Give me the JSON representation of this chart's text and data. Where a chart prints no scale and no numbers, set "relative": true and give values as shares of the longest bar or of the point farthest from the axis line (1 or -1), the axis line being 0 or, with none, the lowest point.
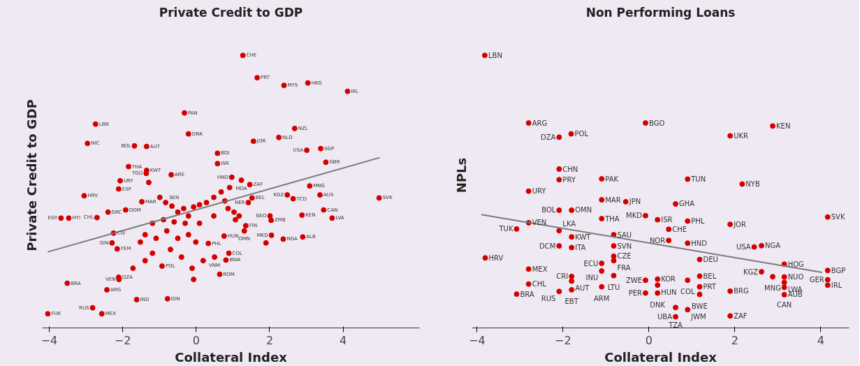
{
  "chart_data": [
    {
      "type": "scatter",
      "title": "Private Credit to GDP",
      "xlabel": "Collateral Index",
      "ylabel": "Private Credit to GDP",
      "relative": true,
      "xlim": [
        -4.19,
        6.08
      ],
      "xticks": [
        -4,
        -2,
        0,
        2,
        4
      ],
      "grid": false,
      "series": [
        {
          "marker": "circle",
          "color": "#d40000",
          "x": [
            1.27,
            1.66,
            2.39,
            3.04,
            4.12,
            -0.32,
            -2.74,
            2.68,
            -0.21,
            -2.96,
            1.56,
            2.25,
            -1.35,
            -1.68,
            3.01,
            3.39,
            0.58,
            3.53,
            -1.84,
            -1.35,
            -1.36,
            -0.68,
            -2.07,
            -2.11,
            -3.05,
            -3.68,
            -3.47,
            -2.7,
            -2.4,
            -1.92,
            -1.48,
            -0.83,
            -2.25,
            -2.29,
            -2.15,
            -2.11,
            -2.1,
            -3.51,
            -2.43,
            -1.62,
            -0.78,
            -2.82,
            -2.57,
            -4.04,
            -0.93,
            0.58,
            0.97,
            1.23,
            1.46,
            2.48,
            2.64,
            3.09,
            3.37,
            4.98,
            3.47,
            3.7,
            2.88,
            2.9,
            2.37,
            2.05,
            2.01,
            2.04,
            0.76,
            1.35,
            1.31,
            0.89,
            0.81,
            0.64,
            1.52,
            1.42,
            0.5,
            0.33,
            1.9,
            -1.29,
            -0.99,
            -0.66,
            -0.5,
            -0.34,
            -0.21,
            -0.07,
            0.09,
            0.28,
            0.48,
            0.68,
            0.78,
            0.87,
            1.03,
            1.07,
            1.17,
            0.48,
            0.09,
            -0.3,
            -0.6,
            -0.89,
            -1.19,
            -1.39,
            -1.09,
            -0.8,
            -0.5,
            -0.21,
            -0.01,
            -0.7,
            -0.4,
            -1.19,
            -1.39,
            -1.72,
            -0.11,
            0.19,
            -0.07,
            -1.52,
            0.91
          ],
          "values": [
            1.0,
            0.918,
            0.89,
            0.899,
            0.868,
            0.789,
            0.748,
            0.732,
            0.712,
            0.677,
            0.685,
            0.699,
            0.666,
            0.668,
            0.652,
            0.658,
            0.641,
            0.608,
            0.592,
            0.578,
            0.567,
            0.562,
            0.54,
            0.51,
            0.485,
            0.403,
            0.403,
            0.405,
            0.425,
            0.433,
            0.463,
            0.46,
            0.348,
            0.312,
            0.29,
            0.186,
            0.178,
            0.164,
            0.14,
            0.104,
            0.107,
            0.074,
            0.052,
            0.052,
            0.227,
            0.603,
            0.553,
            0.542,
            0.526,
            0.488,
            0.474,
            0.521,
            0.488,
            0.477,
            0.433,
            0.403,
            0.414,
            0.334,
            0.326,
            0.34,
            0.411,
            0.395,
            0.337,
            0.375,
            0.356,
            0.274,
            0.249,
            0.197,
            0.477,
            0.46,
            0.26,
            0.31,
            0.312,
            0.534,
            0.479,
            0.447,
            0.425,
            0.438,
            0.411,
            0.444,
            0.452,
            0.46,
            0.479,
            0.499,
            0.466,
            0.438,
            0.425,
            0.397,
            0.411,
            0.411,
            0.384,
            0.384,
            0.389,
            0.397,
            0.384,
            0.342,
            0.329,
            0.356,
            0.329,
            0.342,
            0.315,
            0.288,
            0.26,
            0.274,
            0.247,
            0.219,
            0.219,
            0.247,
            0.178,
            0.315,
            0.515
          ]
        },
        {
          "type": "line",
          "color": "#7a7a7a",
          "x": [
            -4.04,
            5.0
          ],
          "values": [
            0.279,
            0.625
          ]
        }
      ],
      "annotations": [
        {
          "text": "CHE",
          "x": 1.27,
          "y": 1.0
        },
        {
          "text": "PRT",
          "x": 1.66,
          "y": 0.918
        },
        {
          "text": "MYS",
          "x": 2.39,
          "y": 0.89
        },
        {
          "text": "HKG",
          "x": 3.04,
          "y": 0.899
        },
        {
          "text": "IRL",
          "x": 4.12,
          "y": 0.868
        },
        {
          "text": "PAN",
          "x": -0.32,
          "y": 0.789
        },
        {
          "text": "LBN",
          "x": -2.74,
          "y": 0.748
        },
        {
          "text": "NZL",
          "x": 2.68,
          "y": 0.732
        },
        {
          "text": "DNK",
          "x": -0.21,
          "y": 0.712
        },
        {
          "text": "NIC",
          "x": -2.96,
          "y": 0.677
        },
        {
          "text": "JOR",
          "x": 1.56,
          "y": 0.685
        },
        {
          "text": "NLD",
          "x": 2.25,
          "y": 0.699
        },
        {
          "text": "AUT",
          "x": -1.35,
          "y": 0.666
        },
        {
          "text": "BOL",
          "x": -1.68,
          "y": 0.668
        },
        {
          "text": "USA",
          "x": 3.01,
          "y": 0.652
        },
        {
          "text": "SGP",
          "x": 3.39,
          "y": 0.658
        },
        {
          "text": "BDI",
          "x": 0.58,
          "y": 0.641
        },
        {
          "text": "GBR",
          "x": 3.53,
          "y": 0.608
        },
        {
          "text": "THA",
          "x": -1.84,
          "y": 0.592
        },
        {
          "text": "KWT",
          "x": -1.35,
          "y": 0.578
        },
        {
          "text": "TGO",
          "x": -1.36,
          "y": 0.567
        },
        {
          "text": "ARE",
          "x": -0.68,
          "y": 0.562
        },
        {
          "text": "URY",
          "x": -2.07,
          "y": 0.54
        },
        {
          "text": "ESP",
          "x": -2.11,
          "y": 0.51
        },
        {
          "text": "HRV",
          "x": -3.05,
          "y": 0.485
        },
        {
          "text": "EGY",
          "x": -3.68,
          "y": 0.403
        },
        {
          "text": "HTI",
          "x": -3.47,
          "y": 0.403
        },
        {
          "text": "CHL",
          "x": -2.7,
          "y": 0.405
        },
        {
          "text": "GRC",
          "x": -2.4,
          "y": 0.425
        },
        {
          "text": "DOM",
          "x": -1.92,
          "y": 0.433
        },
        {
          "text": "MAR",
          "x": -1.48,
          "y": 0.463
        },
        {
          "text": "SEN",
          "x": -0.83,
          "y": 0.46
        },
        {
          "text": "CIV",
          "x": -2.25,
          "y": 0.348
        },
        {
          "text": "GIN",
          "x": -2.29,
          "y": 0.312
        },
        {
          "text": "YEM",
          "x": -2.15,
          "y": 0.29
        },
        {
          "text": "DZA",
          "x": -2.11,
          "y": 0.186
        },
        {
          "text": "VEN",
          "x": -2.1,
          "y": 0.178
        },
        {
          "text": "BRA",
          "x": -3.51,
          "y": 0.164
        },
        {
          "text": "ARG",
          "x": -2.43,
          "y": 0.14
        },
        {
          "text": "IND",
          "x": -1.62,
          "y": 0.104
        },
        {
          "text": "IDN",
          "x": -0.78,
          "y": 0.107
        },
        {
          "text": "RUS",
          "x": -2.82,
          "y": 0.074
        },
        {
          "text": "MEX",
          "x": -2.57,
          "y": 0.052
        },
        {
          "text": "FUK",
          "x": -4.04,
          "y": 0.052
        },
        {
          "text": "POL",
          "x": -0.93,
          "y": 0.227
        },
        {
          "text": "ISR",
          "x": 0.58,
          "y": 0.603
        },
        {
          "text": "HND",
          "x": 0.97,
          "y": 0.553
        },
        {
          "text": "MDA",
          "x": 1.23,
          "y": 0.542
        },
        {
          "text": "ZAF",
          "x": 1.46,
          "y": 0.526
        },
        {
          "text": "KGZ",
          "x": 2.48,
          "y": 0.488
        },
        {
          "text": "TCD",
          "x": 2.64,
          "y": 0.474
        },
        {
          "text": "MNG",
          "x": 3.09,
          "y": 0.521
        },
        {
          "text": "AUS",
          "x": 3.37,
          "y": 0.488
        },
        {
          "text": "SVK",
          "x": 4.98,
          "y": 0.477
        },
        {
          "text": "CAN",
          "x": 3.47,
          "y": 0.433
        },
        {
          "text": "LVA",
          "x": 3.7,
          "y": 0.403
        },
        {
          "text": "KEN",
          "x": 2.88,
          "y": 0.414
        },
        {
          "text": "ALB",
          "x": 2.9,
          "y": 0.334
        },
        {
          "text": "NGA",
          "x": 2.37,
          "y": 0.326
        },
        {
          "text": "MKD",
          "x": 2.05,
          "y": 0.34
        },
        {
          "text": "GEO",
          "x": 2.01,
          "y": 0.411
        },
        {
          "text": "ZMB",
          "x": 2.04,
          "y": 0.395
        },
        {
          "text": "HUN",
          "x": 0.76,
          "y": 0.337
        },
        {
          "text": "FIN",
          "x": 1.35,
          "y": 0.375
        },
        {
          "text": "OMN",
          "x": 1.31,
          "y": 0.356
        },
        {
          "text": "COL",
          "x": 0.89,
          "y": 0.274
        },
        {
          "text": "BWA",
          "x": 0.81,
          "y": 0.249
        },
        {
          "text": "ROM",
          "x": 0.64,
          "y": 0.197
        },
        {
          "text": "BEL",
          "x": 1.52,
          "y": 0.477
        },
        {
          "text": "NER",
          "x": 1.42,
          "y": 0.46
        },
        {
          "text": "VNM",
          "x": 0.5,
          "y": 0.26
        },
        {
          "text": "PHL",
          "x": 0.33,
          "y": 0.31
        }
      ]
    },
    {
      "type": "scatter",
      "title": "Non Performing Loans",
      "xlabel": "Collateral Index",
      "ylabel": "NPLs",
      "relative": true,
      "xlim": [
        -4.12,
        4.66
      ],
      "xticks": [
        -4,
        -2,
        0,
        2,
        4
      ],
      "grid": false,
      "series": [
        {
          "marker": "circle",
          "color": "#d40000",
          "x": [
            -3.82,
            -2.8,
            -2.09,
            -1.81,
            -0.08,
            1.89,
            2.88,
            -2.09,
            -2.09,
            -1.1,
            0.9,
            2.17,
            -2.8,
            -1.1,
            -0.54,
            0.62,
            -2.09,
            -1.8,
            -1.1,
            -0.08,
            0.2,
            0.9,
            1.89,
            4.16,
            -2.8,
            -3.08,
            -2.09,
            0.46,
            -0.82,
            -1.8,
            0.46,
            0.9,
            -2.09,
            -1.8,
            -0.82,
            2.45,
            2.62,
            -0.82,
            -0.82,
            -3.81,
            -1.1,
            1.18,
            3.15,
            -2.8,
            -1.1,
            -0.82,
            -0.08,
            0.2,
            0.9,
            1.18,
            2.62,
            2.88,
            3.15,
            4.16,
            -1.8,
            -1.8,
            -2.8,
            0.2,
            1.18,
            3.15,
            4.16,
            4.16,
            -1.1,
            3.15,
            -1.8,
            -2.09,
            1.89,
            -3.08,
            -0.08,
            0.2,
            1.18,
            3.15,
            0.62,
            0.9,
            1.89,
            0.62
          ],
          "values": [
            1.0,
            0.752,
            0.7,
            0.712,
            0.752,
            0.705,
            0.741,
            0.583,
            0.544,
            0.547,
            0.546,
            0.528,
            0.502,
            0.47,
            0.463,
            0.455,
            0.432,
            0.432,
            0.401,
            0.412,
            0.397,
            0.392,
            0.38,
            0.407,
            0.386,
            0.363,
            0.357,
            0.362,
            0.342,
            0.334,
            0.321,
            0.311,
            0.301,
            0.295,
            0.301,
            0.297,
            0.302,
            0.263,
            0.247,
            0.257,
            0.237,
            0.251,
            0.234,
            0.216,
            0.209,
            0.192,
            0.175,
            0.179,
            0.175,
            0.19,
            0.206,
            0.188,
            0.187,
            0.211,
            0.189,
            0.172,
            0.161,
            0.157,
            0.151,
            0.167,
            0.177,
            0.157,
            0.151,
            0.149,
            0.14,
            0.134,
            0.135,
            0.124,
            0.128,
            0.128,
            0.123,
            0.122,
            0.075,
            0.067,
            0.044,
            0.041
          ]
        },
        {
          "type": "line",
          "color": "#7a7a7a",
          "x": [
            -3.9,
            4.03
          ],
          "values": [
            0.416,
            0.204
          ]
        }
      ],
      "annotations": [
        {
          "text": "LBN",
          "x": -3.82,
          "y": 1.0
        },
        {
          "text": "ARG",
          "x": -2.8,
          "y": 0.752
        },
        {
          "text": "DZA",
          "x": -2.09,
          "y": 0.7
        },
        {
          "text": "POL",
          "x": -1.81,
          "y": 0.712
        },
        {
          "text": "BGO",
          "x": -0.08,
          "y": 0.752
        },
        {
          "text": "UKR",
          "x": 1.89,
          "y": 0.705
        },
        {
          "text": "KEN",
          "x": 2.88,
          "y": 0.741
        },
        {
          "text": "CHN",
          "x": -2.09,
          "y": 0.583
        },
        {
          "text": "PRY",
          "x": -2.09,
          "y": 0.544
        },
        {
          "text": "PAK",
          "x": -1.1,
          "y": 0.547
        },
        {
          "text": "TUN",
          "x": 0.9,
          "y": 0.546
        },
        {
          "text": "NYB",
          "x": 2.17,
          "y": 0.528
        },
        {
          "text": "URY",
          "x": -2.8,
          "y": 0.502
        },
        {
          "text": "MAR",
          "x": -1.1,
          "y": 0.47
        },
        {
          "text": "JPN",
          "x": -0.54,
          "y": 0.463
        },
        {
          "text": "GHA",
          "x": 0.62,
          "y": 0.455
        },
        {
          "text": "BOL",
          "x": -2.09,
          "y": 0.432
        },
        {
          "text": "OMN",
          "x": -1.8,
          "y": 0.432
        },
        {
          "text": "THA",
          "x": -1.1,
          "y": 0.401
        },
        {
          "text": "MKD",
          "x": -0.08,
          "y": 0.412
        },
        {
          "text": "ISR",
          "x": 0.2,
          "y": 0.397
        },
        {
          "text": "PHL",
          "x": 0.9,
          "y": 0.392
        },
        {
          "text": "JOR",
          "x": 1.89,
          "y": 0.38
        },
        {
          "text": "SVK",
          "x": 4.16,
          "y": 0.407
        },
        {
          "text": "VEN",
          "x": -2.8,
          "y": 0.386
        },
        {
          "text": "TUK",
          "x": -3.08,
          "y": 0.363
        },
        {
          "text": "LKA",
          "x": -2.09,
          "y": 0.357
        },
        {
          "text": "CHE",
          "x": 0.46,
          "y": 0.362
        },
        {
          "text": "SAU",
          "x": -0.82,
          "y": 0.342
        },
        {
          "text": "KWT",
          "x": -1.8,
          "y": 0.334
        },
        {
          "text": "NOR",
          "x": 0.46,
          "y": 0.321
        },
        {
          "text": "HND",
          "x": 0.9,
          "y": 0.311
        },
        {
          "text": "DCM",
          "x": -2.09,
          "y": 0.301
        },
        {
          "text": "ITA",
          "x": -1.8,
          "y": 0.295
        },
        {
          "text": "SVN",
          "x": -0.82,
          "y": 0.301
        },
        {
          "text": "USA",
          "x": 2.45,
          "y": 0.297
        },
        {
          "text": "NGA",
          "x": 2.62,
          "y": 0.302
        },
        {
          "text": "CZE",
          "x": -0.82,
          "y": 0.263
        },
        {
          "text": "FRA",
          "x": -0.82,
          "y": 0.247
        },
        {
          "text": "HRV",
          "x": -3.81,
          "y": 0.257
        },
        {
          "text": "ECU",
          "x": -1.1,
          "y": 0.237
        },
        {
          "text": "DEU",
          "x": 1.18,
          "y": 0.251
        },
        {
          "text": "HOG",
          "x": 3.15,
          "y": 0.234
        },
        {
          "text": "MEX",
          "x": -2.8,
          "y": 0.216
        },
        {
          "text": "INU",
          "x": -1.1,
          "y": 0.209
        },
        {
          "text": "LTU",
          "x": -0.82,
          "y": 0.192
        },
        {
          "text": "ZWE",
          "x": -0.08,
          "y": 0.175
        },
        {
          "text": "KOR",
          "x": 0.2,
          "y": 0.179
        },
        {
          "text": "COL",
          "x": 0.9,
          "y": 0.175
        },
        {
          "text": "BEL",
          "x": 1.18,
          "y": 0.19
        },
        {
          "text": "KGZ",
          "x": 2.62,
          "y": 0.206
        },
        {
          "text": "MNG",
          "x": 2.88,
          "y": 0.188
        },
        {
          "text": "NUO",
          "x": 3.15,
          "y": 0.187
        },
        {
          "text": "BGP",
          "x": 4.16,
          "y": 0.211
        },
        {
          "text": "CRI",
          "x": -1.8,
          "y": 0.189
        },
        {
          "text": "AUT",
          "x": -1.8,
          "y": 0.172
        },
        {
          "text": "CHL",
          "x": -2.8,
          "y": 0.161
        },
        {
          "text": "HUN",
          "x": 0.2,
          "y": 0.157
        },
        {
          "text": "PRT",
          "x": 1.18,
          "y": 0.151
        },
        {
          "text": "LWA",
          "x": 3.15,
          "y": 0.167
        },
        {
          "text": "GER",
          "x": 4.16,
          "y": 0.177
        },
        {
          "text": "IRL",
          "x": 4.16,
          "y": 0.157
        },
        {
          "text": "ARM",
          "x": -1.1,
          "y": 0.151
        },
        {
          "text": "CAN",
          "x": 3.15,
          "y": 0.149
        },
        {
          "text": "EBT",
          "x": -1.8,
          "y": 0.14
        },
        {
          "text": "RUS",
          "x": -2.09,
          "y": 0.134
        },
        {
          "text": "BRG",
          "x": 1.89,
          "y": 0.135
        },
        {
          "text": "BRA",
          "x": -3.08,
          "y": 0.124
        },
        {
          "text": "PER",
          "x": -0.08,
          "y": 0.128
        },
        {
          "text": "DNK",
          "x": 0.2,
          "y": 0.128
        },
        {
          "text": "BWE",
          "x": 1.18,
          "y": 0.123
        },
        {
          "text": "AUB",
          "x": 3.15,
          "y": 0.122
        },
        {
          "text": "TZA",
          "x": 0.62,
          "y": 0.075
        },
        {
          "text": "JWM",
          "x": 0.9,
          "y": 0.067
        },
        {
          "text": "ZAF",
          "x": 1.89,
          "y": 0.044
        },
        {
          "text": "UBA",
          "x": 0.62,
          "y": 0.041
        }
      ]
    }
  ]
}
